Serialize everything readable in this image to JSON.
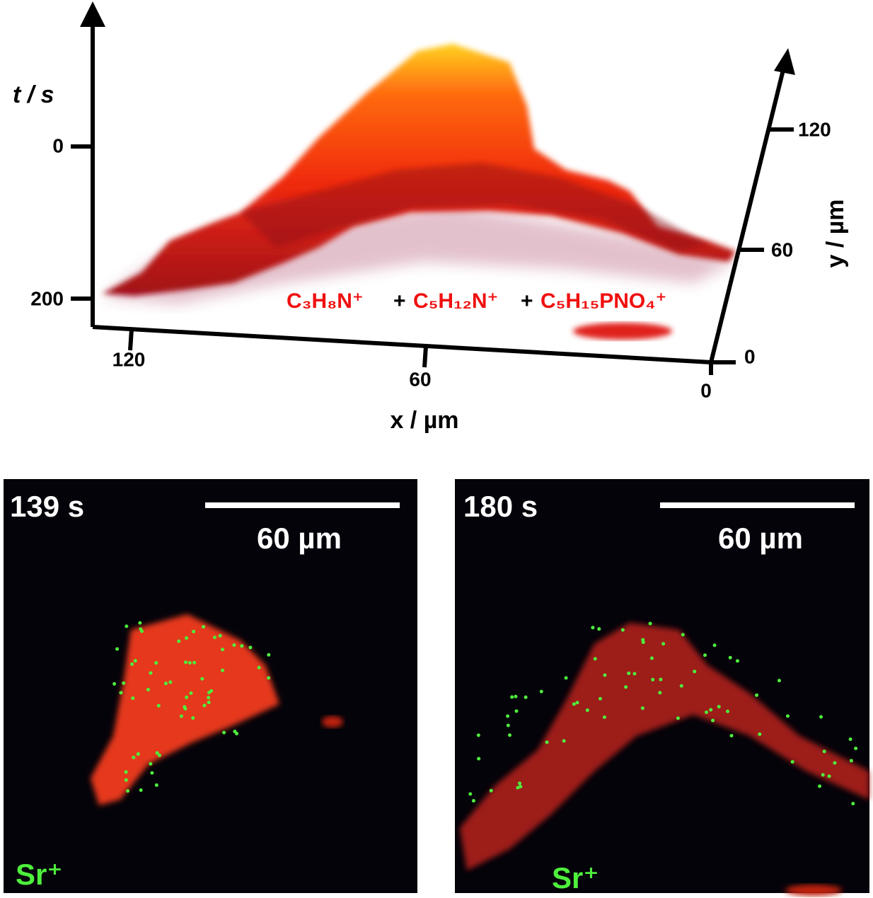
{
  "figure": {
    "top": {
      "t_axis": {
        "label": "t / s",
        "ticks": [
          0,
          200
        ]
      },
      "x_axis": {
        "label": "x / µm",
        "ticks": [
          120,
          60,
          0
        ]
      },
      "y_axis": {
        "label": "y / µm",
        "ticks": [
          0,
          60,
          120
        ]
      },
      "ions": [
        "C₃H₈N⁺",
        "+",
        "C₅H₁₂N⁺",
        "+",
        "C₅H₁₅PNO₄⁺"
      ]
    },
    "panels": [
      {
        "time": "139 s",
        "scale_bar": "60 µm",
        "ion": "Sr⁺"
      },
      {
        "time": "180 s",
        "scale_bar": "60 µm",
        "ion": "Sr⁺"
      }
    ]
  }
}
